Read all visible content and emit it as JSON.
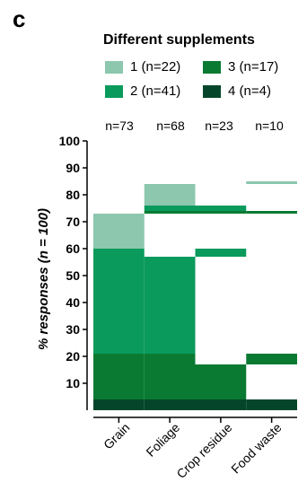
{
  "panel_label": "c",
  "legend": {
    "title": "Different supplements",
    "items": [
      {
        "label": "1 (n=22)",
        "color": "#8cc7ae"
      },
      {
        "label": "3 (n=17)",
        "color": "#0a7a33"
      },
      {
        "label": "2 (n=41)",
        "color": "#0a9a5c"
      },
      {
        "label": "4 (n=4)",
        "color": "#05462a"
      }
    ]
  },
  "chart_data": {
    "type": "bar",
    "ylabel": "% responses (n = 100)",
    "ylim": [
      0,
      100
    ],
    "yticks": [
      10,
      20,
      30,
      40,
      50,
      60,
      70,
      80,
      90,
      100
    ],
    "grid": false,
    "categories": [
      "Grain",
      "Foliage",
      "Crop residue",
      "Food waste"
    ],
    "n_labels": [
      "n=73",
      "n=68",
      "n=23",
      "n=10"
    ],
    "segments": [
      [
        {
          "supplement": "4",
          "from": 0,
          "to": 4
        },
        {
          "supplement": "3",
          "from": 4,
          "to": 21
        },
        {
          "supplement": "2",
          "from": 21,
          "to": 60
        },
        {
          "supplement": "1",
          "from": 60,
          "to": 73
        }
      ],
      [
        {
          "supplement": "4",
          "from": 0,
          "to": 4
        },
        {
          "supplement": "3",
          "from": 4,
          "to": 21
        },
        {
          "supplement": "2",
          "from": 21,
          "to": 57
        },
        {
          "supplement": "3",
          "from": 73,
          "to": 74
        },
        {
          "supplement": "2",
          "from": 74,
          "to": 76
        },
        {
          "supplement": "1",
          "from": 76,
          "to": 84
        }
      ],
      [
        {
          "supplement": "4",
          "from": 0,
          "to": 4
        },
        {
          "supplement": "3",
          "from": 4,
          "to": 17
        },
        {
          "supplement": "2",
          "from": 57,
          "to": 60
        },
        {
          "supplement": "3",
          "from": 73,
          "to": 74
        },
        {
          "supplement": "2",
          "from": 74,
          "to": 76
        }
      ],
      [
        {
          "supplement": "4",
          "from": 0,
          "to": 4
        },
        {
          "supplement": "3",
          "from": 17,
          "to": 21
        },
        {
          "supplement": "3",
          "from": 73,
          "to": 74
        },
        {
          "supplement": "1",
          "from": 84,
          "to": 85
        }
      ]
    ]
  }
}
